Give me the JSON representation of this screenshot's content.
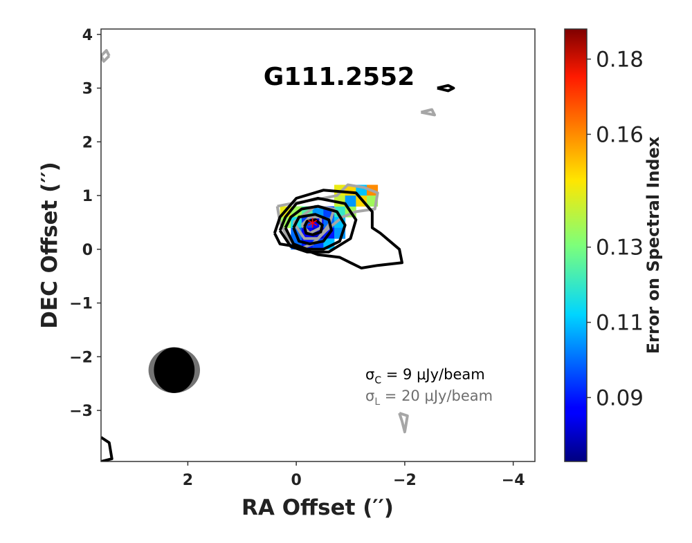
{
  "chart_data": {
    "type": "heatmap",
    "title": "G111.2552",
    "xlabel": "RA Offset (′′)",
    "ylabel": "DEC Offset (′′)",
    "xlim": [
      3.6,
      -4.4
    ],
    "ylim": [
      -3.95,
      4.1
    ],
    "xticks": [
      2,
      0,
      -2,
      -4
    ],
    "yticks": [
      4,
      3,
      2,
      1,
      0,
      -1,
      -2,
      -3
    ],
    "xtick_labels": [
      "2",
      "0",
      "−2",
      "−4"
    ],
    "ytick_labels": [
      "4",
      "3",
      "2",
      "1",
      "0",
      "−1",
      "−2",
      "−3"
    ],
    "colorbar": {
      "label": "Error on Spectral Index",
      "range": [
        0.073,
        0.188
      ],
      "ticks": [
        0.09,
        0.11,
        0.13,
        0.16,
        0.18
      ],
      "tick_labels": [
        "0.09",
        "0.11",
        "0.13",
        "0.16",
        "0.18"
      ],
      "colormap": "jet"
    },
    "pixel_size": 0.2,
    "cells": [
      {
        "x": 0.2,
        "y": 0.7,
        "v": 0.145
      },
      {
        "x": 0.0,
        "y": 0.7,
        "v": 0.135
      },
      {
        "x": -0.2,
        "y": 0.7,
        "v": 0.125
      },
      {
        "x": -0.4,
        "y": 0.7,
        "v": 0.105
      },
      {
        "x": -0.6,
        "y": 0.7,
        "v": 0.095
      },
      {
        "x": -0.8,
        "y": 0.7,
        "v": 0.12
      },
      {
        "x": -1.0,
        "y": 0.7,
        "v": 0.135
      },
      {
        "x": 0.2,
        "y": 0.5,
        "v": 0.135
      },
      {
        "x": 0.0,
        "y": 0.5,
        "v": 0.115
      },
      {
        "x": -0.2,
        "y": 0.5,
        "v": 0.095
      },
      {
        "x": -0.4,
        "y": 0.5,
        "v": 0.085
      },
      {
        "x": -0.6,
        "y": 0.5,
        "v": 0.1
      },
      {
        "x": -0.8,
        "y": 0.5,
        "v": 0.11
      },
      {
        "x": 0.0,
        "y": 0.3,
        "v": 0.1
      },
      {
        "x": -0.2,
        "y": 0.3,
        "v": 0.085
      },
      {
        "x": -0.4,
        "y": 0.3,
        "v": 0.08
      },
      {
        "x": -0.6,
        "y": 0.3,
        "v": 0.09
      },
      {
        "x": -0.8,
        "y": 0.3,
        "v": 0.105
      },
      {
        "x": 0.0,
        "y": 0.1,
        "v": 0.1
      },
      {
        "x": -0.2,
        "y": 0.1,
        "v": 0.09
      },
      {
        "x": -0.4,
        "y": 0.1,
        "v": 0.095
      },
      {
        "x": -0.6,
        "y": 0.1,
        "v": 0.11
      },
      {
        "x": -0.8,
        "y": 1.1,
        "v": 0.145
      },
      {
        "x": -1.0,
        "y": 1.1,
        "v": 0.15
      },
      {
        "x": -1.2,
        "y": 1.1,
        "v": 0.11
      },
      {
        "x": -1.4,
        "y": 1.1,
        "v": 0.16
      },
      {
        "x": -0.8,
        "y": 0.9,
        "v": 0.14
      },
      {
        "x": -1.0,
        "y": 0.9,
        "v": 0.105
      },
      {
        "x": -1.2,
        "y": 0.9,
        "v": 0.15
      },
      {
        "x": -1.4,
        "y": 0.9,
        "v": 0.135
      }
    ],
    "continuum_contours": [
      [
        [
          0.4,
          0.3
        ],
        [
          0.3,
          0.6
        ],
        [
          0.0,
          0.95
        ],
        [
          -0.5,
          1.1
        ],
        [
          -1.1,
          1.05
        ],
        [
          -1.4,
          0.7
        ],
        [
          -1.4,
          0.4
        ],
        [
          -1.55,
          0.3
        ],
        [
          -1.9,
          0.0
        ],
        [
          -1.95,
          -0.25
        ],
        [
          -1.5,
          -0.3
        ],
        [
          -1.2,
          -0.35
        ],
        [
          -1.0,
          -0.25
        ],
        [
          -0.8,
          -0.15
        ],
        [
          -0.4,
          -0.1
        ],
        [
          0.0,
          0.05
        ],
        [
          0.3,
          0.1
        ],
        [
          0.4,
          0.3
        ]
      ],
      [
        [
          0.3,
          0.35
        ],
        [
          0.2,
          0.6
        ],
        [
          0.0,
          0.85
        ],
        [
          -0.4,
          0.95
        ],
        [
          -0.9,
          0.85
        ],
        [
          -1.1,
          0.55
        ],
        [
          -1.0,
          0.2
        ],
        [
          -0.6,
          -0.05
        ],
        [
          -0.2,
          -0.05
        ],
        [
          0.1,
          0.05
        ],
        [
          0.3,
          0.35
        ]
      ],
      [
        [
          0.2,
          0.4
        ],
        [
          0.1,
          0.6
        ],
        [
          -0.1,
          0.75
        ],
        [
          -0.4,
          0.8
        ],
        [
          -0.75,
          0.7
        ],
        [
          -0.9,
          0.45
        ],
        [
          -0.8,
          0.15
        ],
        [
          -0.5,
          0.0
        ],
        [
          -0.2,
          0.0
        ],
        [
          0.05,
          0.1
        ],
        [
          0.2,
          0.4
        ]
      ],
      [
        [
          0.05,
          0.4
        ],
        [
          -0.05,
          0.6
        ],
        [
          -0.35,
          0.65
        ],
        [
          -0.6,
          0.55
        ],
        [
          -0.65,
          0.35
        ],
        [
          -0.5,
          0.15
        ],
        [
          -0.25,
          0.1
        ],
        [
          -0.05,
          0.15
        ],
        [
          0.05,
          0.4
        ]
      ],
      [
        [
          -0.15,
          0.42
        ],
        [
          -0.2,
          0.52
        ],
        [
          -0.35,
          0.55
        ],
        [
          -0.48,
          0.45
        ],
        [
          -0.45,
          0.32
        ],
        [
          -0.3,
          0.27
        ],
        [
          -0.18,
          0.3
        ],
        [
          -0.15,
          0.42
        ]
      ],
      [
        [
          -2.6,
          3.0
        ],
        [
          -2.8,
          2.95
        ],
        [
          -2.9,
          3.0
        ],
        [
          -2.8,
          3.05
        ],
        [
          -2.6,
          3.0
        ]
      ],
      [
        [
          3.6,
          -3.5
        ],
        [
          3.45,
          -3.6
        ],
        [
          3.4,
          -3.9
        ],
        [
          3.6,
          -3.95
        ]
      ]
    ],
    "line_contours": [
      [
        [
          0.35,
          0.8
        ],
        [
          0.3,
          0.5
        ],
        [
          0.15,
          0.2
        ],
        [
          -0.05,
          0.0
        ],
        [
          -0.3,
          0.1
        ],
        [
          -0.55,
          0.35
        ],
        [
          -0.85,
          0.6
        ],
        [
          -1.1,
          0.7
        ],
        [
          -1.45,
          0.75
        ],
        [
          -1.5,
          1.05
        ],
        [
          -1.25,
          1.15
        ],
        [
          -0.95,
          1.2
        ],
        [
          -0.75,
          1.0
        ],
        [
          -0.5,
          0.95
        ],
        [
          -0.2,
          0.9
        ],
        [
          0.1,
          0.85
        ],
        [
          0.35,
          0.8
        ]
      ],
      [
        [
          0.05,
          0.5
        ],
        [
          -0.15,
          0.2
        ],
        [
          -0.4,
          0.2
        ],
        [
          -0.6,
          0.45
        ],
        [
          -0.7,
          0.75
        ],
        [
          -0.35,
          0.8
        ],
        [
          0.05,
          0.5
        ]
      ],
      [
        [
          -0.1,
          0.45
        ],
        [
          -0.25,
          0.3
        ],
        [
          -0.45,
          0.4
        ],
        [
          -0.45,
          0.6
        ],
        [
          -0.25,
          0.6
        ],
        [
          -0.1,
          0.45
        ]
      ],
      [
        [
          -2.3,
          2.55
        ],
        [
          -2.5,
          2.6
        ],
        [
          -2.55,
          2.5
        ],
        [
          -2.3,
          2.55
        ]
      ],
      [
        [
          3.45,
          3.6
        ],
        [
          3.55,
          3.5
        ],
        [
          3.6,
          3.6
        ],
        [
          3.5,
          3.7
        ],
        [
          3.45,
          3.6
        ]
      ],
      [
        [
          -1.9,
          -3.05
        ],
        [
          -1.95,
          -3.2
        ],
        [
          -2.0,
          -3.4
        ],
        [
          -2.05,
          -3.1
        ],
        [
          -1.9,
          -3.05
        ]
      ]
    ],
    "source_marker": {
      "x": -0.3,
      "y": 0.45,
      "symbol": "*",
      "color": "#ff0000"
    },
    "beams": [
      {
        "x": 2.25,
        "y": -2.25,
        "bmaj": 0.95,
        "bmin": 0.85,
        "color": "#737373"
      },
      {
        "x": 2.25,
        "y": -2.25,
        "bmaj": 0.75,
        "bmin": 0.85,
        "color": "#000000"
      }
    ],
    "annotations": {
      "sigma_c": "σ",
      "sigma_c_sub": "C",
      "sigma_c_text": " = 9 μJy/beam",
      "sigma_l": "σ",
      "sigma_l_sub": "L",
      "sigma_l_text": " = 20 μJy/beam",
      "sigma_c_color": "#000000",
      "sigma_l_color": "#6e6e6e"
    },
    "contour_colors": {
      "continuum": "#000000",
      "line": "#a6a6a6"
    }
  }
}
